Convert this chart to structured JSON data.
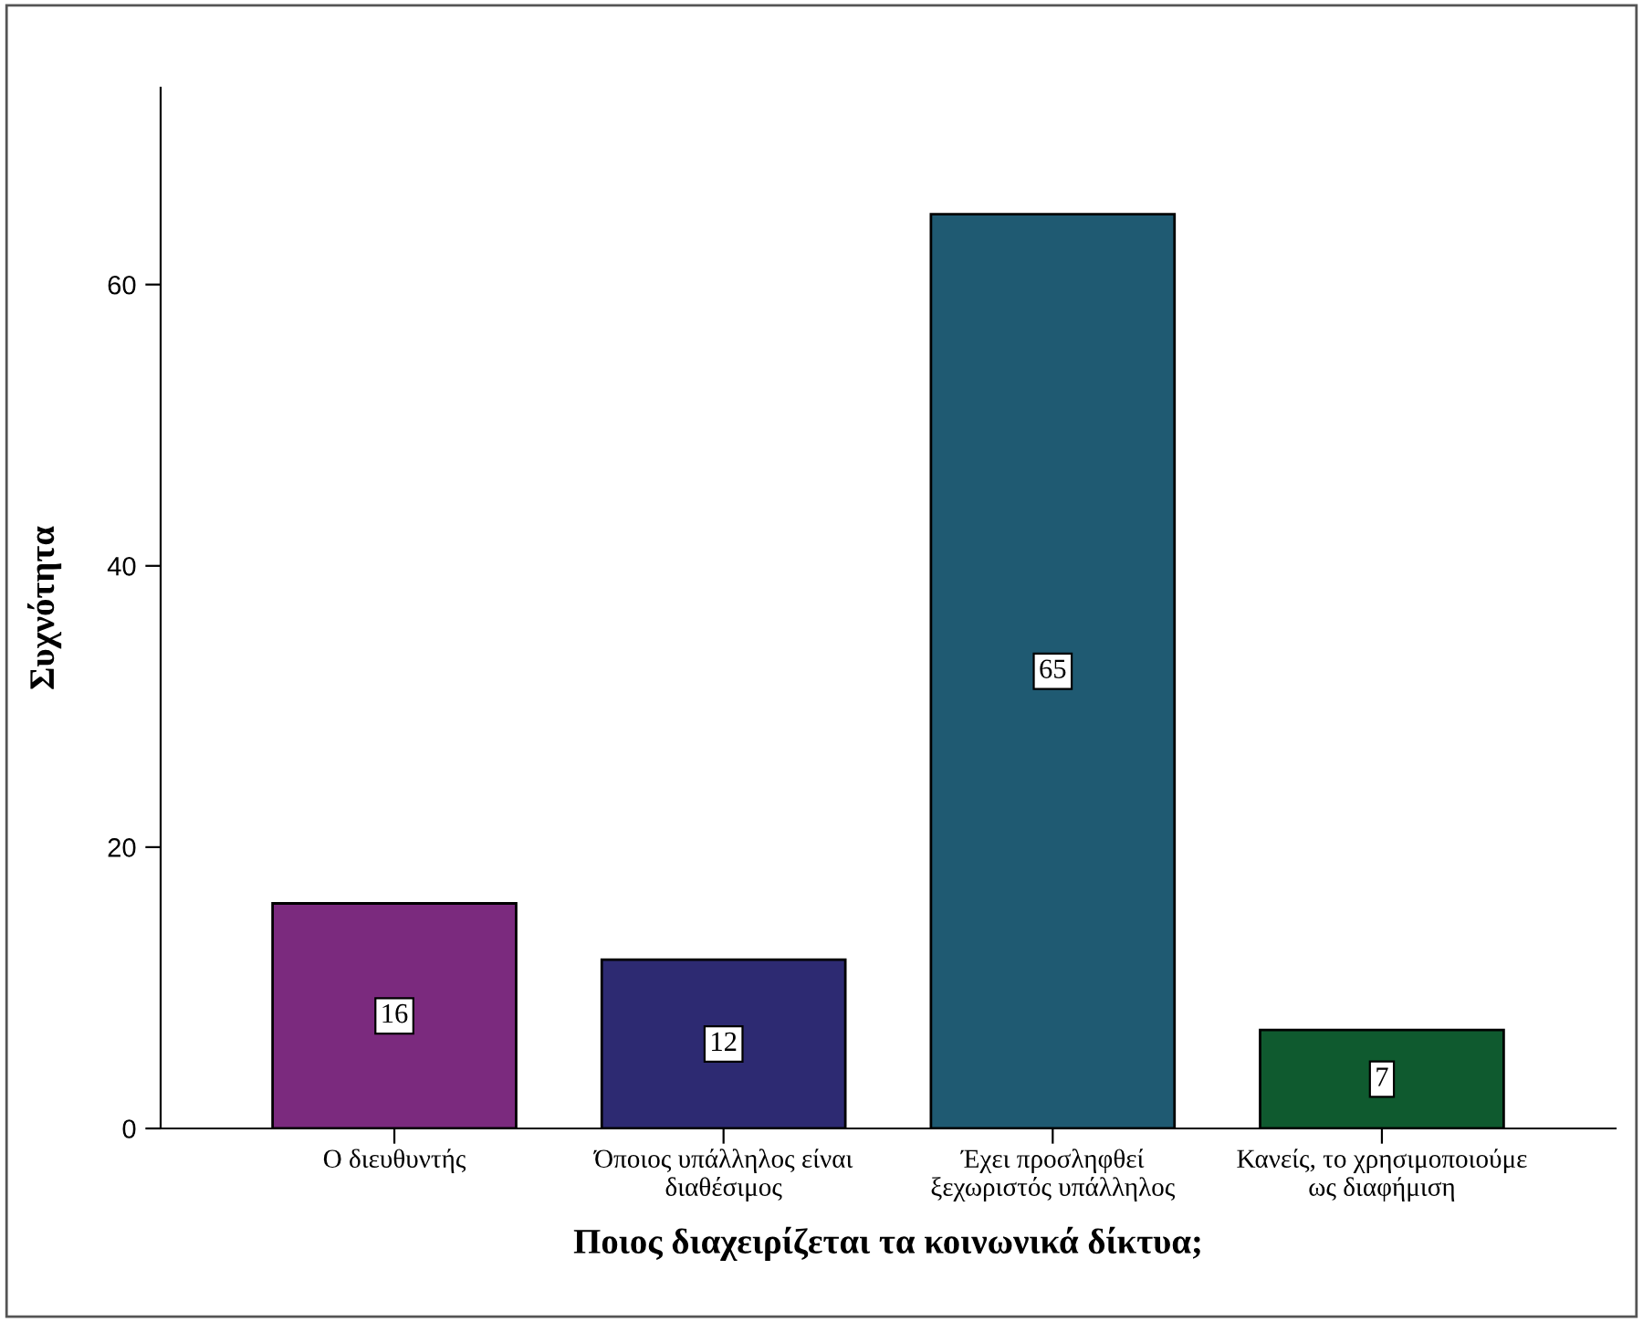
{
  "chart_data": {
    "type": "bar",
    "xlabel": "Ποιος διαχειρίζεται τα κοινωνικά δίκτυα;",
    "ylabel": "Συχνότητα",
    "categories": [
      "Ο διευθυντής",
      "Όποιος υπάλληλος είναι\nδιαθέσιμος",
      "Έχει προσληφθεί\nξεχωριστός υπάλληλος",
      "Κανείς, το χρησιμοποιούμε\nως διαφήμιση"
    ],
    "values": [
      16,
      12,
      65,
      7
    ],
    "colors": [
      "#7b2a7e",
      "#2d2a72",
      "#1f5a72",
      "#0f5a2f"
    ],
    "ylim": [
      0,
      74
    ],
    "yticks": [
      0,
      20,
      40,
      60
    ],
    "data_labels": true,
    "grid": false,
    "legend": false
  }
}
